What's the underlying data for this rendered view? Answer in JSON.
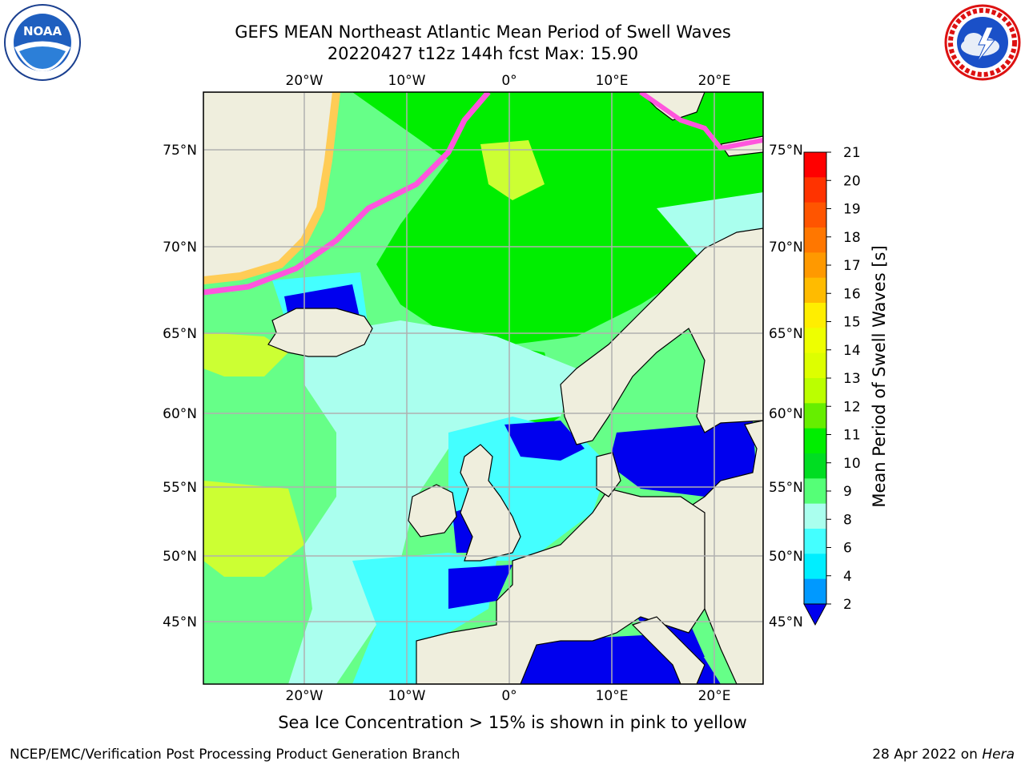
{
  "header": {
    "title_line1": "GEFS MEAN Northeast Atlantic Mean Period of Swell Waves",
    "title_line2": "20220427 t12z 144h fcst   Max: 15.90"
  },
  "logos": {
    "noaa": {
      "icon": "noaa-logo",
      "text": "NOAA",
      "ring_text": "NATIONAL OCEANIC AND ATMOSPHERIC ADMINISTRATION · U.S. DEPARTMENT OF COMMERCE"
    },
    "nws": {
      "icon": "nws-logo",
      "ring_text": "NATIONAL WEATHER SERVICE"
    }
  },
  "map": {
    "longitude_labels": [
      "20°W",
      "10°W",
      "0°",
      "10°E",
      "20°E"
    ],
    "latitude_labels": [
      "75°N",
      "70°N",
      "65°N",
      "60°N",
      "55°N",
      "50°N",
      "45°N"
    ],
    "colors": {
      "ocean_low": "#00e8ff",
      "ocean_mid": "#66ff88",
      "ocean_green": "#00ee00",
      "land": "#efeedd",
      "ice_edge": "#ff55dd",
      "grid": "#b0b0b0"
    }
  },
  "colorbar": {
    "label": "Mean Period of Swell Waves [s]",
    "ticks": [
      "21",
      "20",
      "19",
      "18",
      "17",
      "16",
      "15",
      "14",
      "13",
      "12",
      "11",
      "10",
      "9",
      "8",
      "6",
      "4",
      "2"
    ],
    "colors": [
      "#ff0000",
      "#ff3300",
      "#ff5500",
      "#ff7700",
      "#ff9900",
      "#ffbb00",
      "#ffee00",
      "#eeff00",
      "#ddff00",
      "#bbff00",
      "#66ee00",
      "#00ee00",
      "#00dd22",
      "#55ff77",
      "#aaffee",
      "#44ffff",
      "#00eeff",
      "#0099ff",
      "#0000ee"
    ]
  },
  "caption": "Sea Ice Concentration > 15% is shown in pink to yellow",
  "footer": {
    "left": "NCEP/EMC/Verification Post Processing Product Generation Branch",
    "date": "28 Apr 2022 on ",
    "host": "Hera"
  }
}
